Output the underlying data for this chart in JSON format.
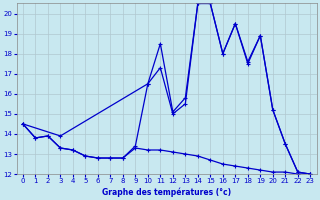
{
  "xlabel": "Graphe des températures (°c)",
  "bg_color": "#c8e8f0",
  "grid_color": "#b0c8d0",
  "line_color": "#0000cc",
  "xlim": [
    -0.5,
    23.5
  ],
  "ylim": [
    12,
    20.5
  ],
  "yticks": [
    12,
    13,
    14,
    15,
    16,
    17,
    18,
    19,
    20
  ],
  "xticks": [
    0,
    1,
    2,
    3,
    4,
    5,
    6,
    7,
    8,
    9,
    10,
    11,
    12,
    13,
    14,
    15,
    16,
    17,
    18,
    19,
    20,
    21,
    22,
    23
  ],
  "line1_x": [
    0,
    1,
    2,
    3,
    4,
    5,
    6,
    7,
    8,
    9,
    10,
    11,
    12,
    13,
    14,
    15,
    16,
    17,
    18,
    19,
    20,
    21,
    22,
    23
  ],
  "line1_y": [
    14.5,
    13.8,
    13.9,
    13.3,
    13.2,
    12.9,
    12.8,
    12.8,
    12.8,
    13.3,
    13.2,
    13.2,
    13.1,
    13.0,
    12.9,
    12.7,
    12.5,
    12.4,
    12.3,
    12.2,
    12.1,
    12.1,
    12.0,
    12.0
  ],
  "line2_x": [
    0,
    1,
    2,
    3,
    4,
    5,
    6,
    7,
    8,
    9,
    10,
    11,
    12,
    13,
    14,
    15,
    16,
    17,
    18,
    19,
    20,
    21,
    22,
    23
  ],
  "line2_y": [
    14.5,
    13.8,
    13.9,
    13.3,
    13.2,
    12.9,
    12.8,
    12.8,
    12.8,
    13.4,
    16.5,
    17.3,
    15.0,
    15.5,
    20.5,
    20.5,
    18.0,
    19.5,
    17.5,
    18.9,
    15.2,
    13.5,
    12.1,
    12.0
  ],
  "line3_x": [
    0,
    3,
    10,
    11,
    12,
    13,
    14,
    15,
    16,
    17,
    18,
    19,
    20,
    21,
    22,
    23
  ],
  "line3_y": [
    14.5,
    13.9,
    16.5,
    18.5,
    15.1,
    15.8,
    20.5,
    20.5,
    18.0,
    19.5,
    17.6,
    18.9,
    15.2,
    13.5,
    12.1,
    12.0
  ]
}
